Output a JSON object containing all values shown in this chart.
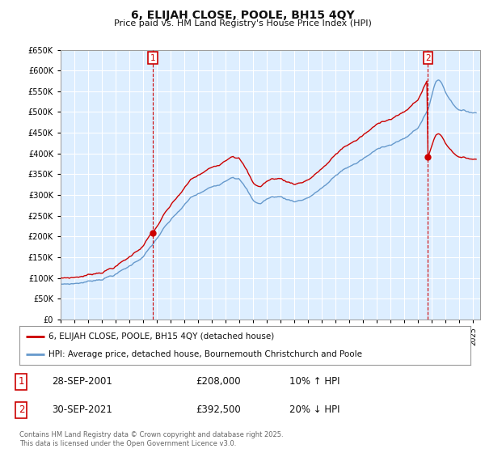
{
  "title": "6, ELIJAH CLOSE, POOLE, BH15 4QY",
  "subtitle": "Price paid vs. HM Land Registry's House Price Index (HPI)",
  "legend_line1": "6, ELIJAH CLOSE, POOLE, BH15 4QY (detached house)",
  "legend_line2": "HPI: Average price, detached house, Bournemouth Christchurch and Poole",
  "annotation1_label": "1",
  "annotation1_date": "28-SEP-2001",
  "annotation1_price": "£208,000",
  "annotation1_hpi": "10% ↑ HPI",
  "annotation2_label": "2",
  "annotation2_date": "30-SEP-2021",
  "annotation2_price": "£392,500",
  "annotation2_hpi": "20% ↓ HPI",
  "footer": "Contains HM Land Registry data © Crown copyright and database right 2025.\nThis data is licensed under the Open Government Licence v3.0.",
  "red_color": "#cc0000",
  "blue_color": "#6699cc",
  "chart_bg": "#ddeeff",
  "grid_color": "#ffffff",
  "background_color": "#ffffff",
  "annotation_box_color": "#cc0000",
  "ylim": [
    0,
    650000
  ],
  "ytick_step": 50000
}
